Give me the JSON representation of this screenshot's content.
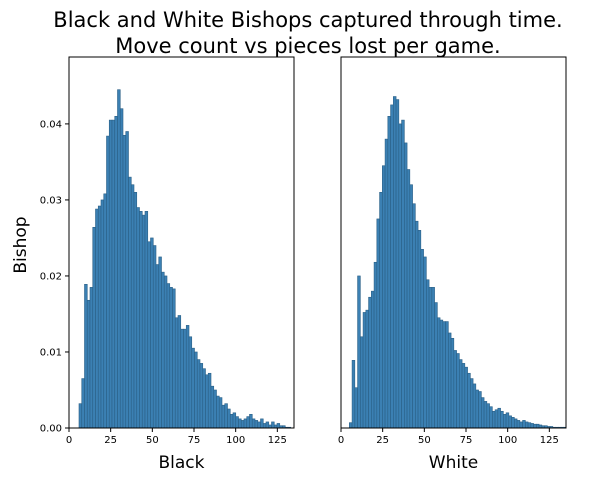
{
  "chart_data": {
    "title_line1": "Black and White Bishops captured through time.",
    "title_line2": "Move count vs pieces lost per game.",
    "ylabel": "Bishop",
    "panels": [
      {
        "type": "bar",
        "xlabel": "Black",
        "xlim": [
          0,
          135
        ],
        "ylim": [
          0,
          0.0488
        ],
        "xticks": [
          0,
          25,
          50,
          75,
          100,
          125
        ],
        "yticks": [
          "0.00",
          "0.01",
          "0.02",
          "0.03",
          "0.04"
        ],
        "bin_width": 1.65,
        "bin_start": 6,
        "values": [
          0.0032,
          0.0065,
          0.0189,
          0.0168,
          0.0185,
          0.0264,
          0.0288,
          0.0292,
          0.03,
          0.0308,
          0.0384,
          0.0405,
          0.0405,
          0.041,
          0.0445,
          0.042,
          0.0385,
          0.039,
          0.033,
          0.032,
          0.031,
          0.029,
          0.0285,
          0.028,
          0.0285,
          0.0245,
          0.025,
          0.024,
          0.0215,
          0.0225,
          0.0205,
          0.02,
          0.019,
          0.0185,
          0.0183,
          0.0145,
          0.0148,
          0.013,
          0.013,
          0.0135,
          0.012,
          0.0105,
          0.01,
          0.009,
          0.0085,
          0.0078,
          0.007,
          0.0072,
          0.0055,
          0.005,
          0.0042,
          0.004,
          0.003,
          0.0032,
          0.0025,
          0.0018,
          0.002,
          0.0015,
          0.0012,
          0.001,
          0.0012,
          0.0015,
          0.0018,
          0.0012,
          0.001,
          0.0008,
          0.0012,
          0.0006,
          0.0008,
          0.0004,
          0.0008,
          0.0004,
          0.0006,
          0.0003,
          0.0003,
          0.0001,
          0.0001
        ]
      },
      {
        "type": "bar",
        "xlabel": "White",
        "xlim": [
          0,
          135
        ],
        "ylim": [
          0,
          0.0488
        ],
        "xticks": [
          0,
          25,
          50,
          75,
          100,
          125
        ],
        "bin_width": 1.65,
        "bin_start": 5,
        "values": [
          0.0007,
          0.0089,
          0.0053,
          0.02,
          0.012,
          0.0152,
          0.0155,
          0.0172,
          0.018,
          0.0218,
          0.0275,
          0.031,
          0.0345,
          0.038,
          0.041,
          0.0425,
          0.0436,
          0.0432,
          0.04,
          0.0405,
          0.0375,
          0.034,
          0.032,
          0.0295,
          0.0272,
          0.026,
          0.0235,
          0.0225,
          0.0195,
          0.0185,
          0.0185,
          0.0165,
          0.0145,
          0.0142,
          0.014,
          0.014,
          0.0125,
          0.0118,
          0.0102,
          0.0098,
          0.009,
          0.0085,
          0.008,
          0.0072,
          0.0065,
          0.0058,
          0.005,
          0.0048,
          0.004,
          0.0035,
          0.0032,
          0.0028,
          0.0022,
          0.0024,
          0.0026,
          0.0022,
          0.0018,
          0.002,
          0.0016,
          0.0014,
          0.0012,
          0.001,
          0.0008,
          0.001,
          0.0008,
          0.0007,
          0.0006,
          0.0005,
          0.0005,
          0.0004,
          0.0003,
          0.0003,
          0.0002,
          0.0002,
          0.0001,
          0.0001,
          0.0001,
          0.0001,
          0.0001,
          0.0001
        ]
      }
    ]
  }
}
